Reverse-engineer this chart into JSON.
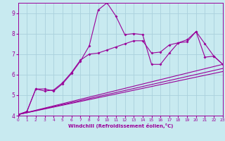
{
  "background_color": "#c8eaf0",
  "grid_color": "#aad0dc",
  "line_color": "#990099",
  "xlabel": "Windchill (Refroidissement éolien,°C)",
  "xlim": [
    0,
    23
  ],
  "ylim": [
    4,
    9.5
  ],
  "yticks": [
    4,
    5,
    6,
    7,
    8,
    9
  ],
  "xticks": [
    0,
    1,
    2,
    3,
    4,
    5,
    6,
    7,
    8,
    9,
    10,
    11,
    12,
    13,
    14,
    15,
    16,
    17,
    18,
    19,
    20,
    21,
    22,
    23
  ],
  "line1_x": [
    0,
    1,
    2,
    3,
    4,
    5,
    6,
    7,
    8,
    9,
    10,
    11,
    12,
    13,
    14,
    15,
    16,
    17,
    18,
    19,
    20,
    21,
    22,
    23
  ],
  "line1_y": [
    4.05,
    4.2,
    5.3,
    5.3,
    5.2,
    5.55,
    6.05,
    6.65,
    7.4,
    9.15,
    9.5,
    8.85,
    7.95,
    8.0,
    7.95,
    6.5,
    6.5,
    7.05,
    7.55,
    7.7,
    8.1,
    6.85,
    6.9,
    6.5
  ],
  "line2_x": [
    0,
    1,
    2,
    3,
    4,
    5,
    6,
    7,
    8,
    9,
    10,
    11,
    12,
    13,
    14,
    15,
    16,
    17,
    18,
    19,
    20,
    21,
    22,
    23
  ],
  "line2_y": [
    4.05,
    4.2,
    5.3,
    5.2,
    5.25,
    5.6,
    6.1,
    6.7,
    7.0,
    7.05,
    7.2,
    7.35,
    7.5,
    7.65,
    7.65,
    7.05,
    7.1,
    7.45,
    7.55,
    7.6,
    8.1,
    7.5,
    6.9,
    6.5
  ],
  "line3_x": [
    0,
    23
  ],
  "line3_y": [
    4.05,
    6.5
  ],
  "line4_x": [
    0,
    23
  ],
  "line4_y": [
    4.05,
    6.3
  ],
  "line5_x": [
    0,
    23
  ],
  "line5_y": [
    4.05,
    6.15
  ]
}
